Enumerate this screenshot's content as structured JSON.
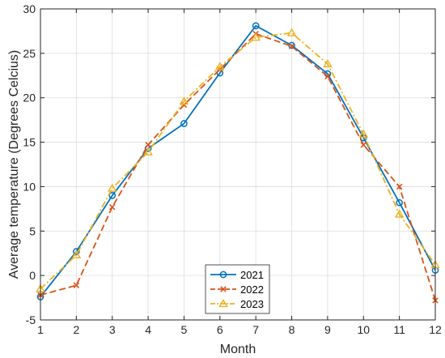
{
  "chart_data": {
    "type": "line",
    "title": "",
    "xlabel": "Month",
    "ylabel": "Average temperature (Degrees Celcius)",
    "x": [
      1,
      2,
      3,
      4,
      5,
      6,
      7,
      8,
      9,
      10,
      11,
      12
    ],
    "xlim": [
      1,
      12
    ],
    "ylim": [
      -5,
      30
    ],
    "xticks": [
      "1",
      "2",
      "3",
      "4",
      "5",
      "6",
      "7",
      "8",
      "9",
      "10",
      "11",
      "12"
    ],
    "yticks": [
      "-5",
      "0",
      "5",
      "10",
      "15",
      "20",
      "25",
      "30"
    ],
    "grid": true,
    "legend_position": "bottom-center",
    "series": [
      {
        "name": "2021",
        "color": "#0072BD",
        "line_style": "solid",
        "marker": "circle",
        "values": [
          -2.4,
          2.7,
          9.0,
          14.3,
          17.1,
          22.8,
          28.1,
          25.9,
          22.7,
          15.5,
          8.2,
          0.6
        ]
      },
      {
        "name": "2022",
        "color": "#D95319",
        "line_style": "dashed",
        "marker": "x",
        "values": [
          -2.2,
          -1.1,
          7.7,
          14.7,
          19.2,
          23.2,
          27.2,
          25.8,
          22.4,
          14.7,
          10.0,
          -2.8
        ]
      },
      {
        "name": "2023",
        "color": "#EDB120",
        "line_style": "dash-dot",
        "marker": "triangle",
        "values": [
          -1.5,
          2.3,
          9.8,
          13.9,
          19.6,
          23.5,
          26.8,
          27.3,
          23.8,
          15.9,
          6.9,
          1.2
        ]
      }
    ]
  }
}
